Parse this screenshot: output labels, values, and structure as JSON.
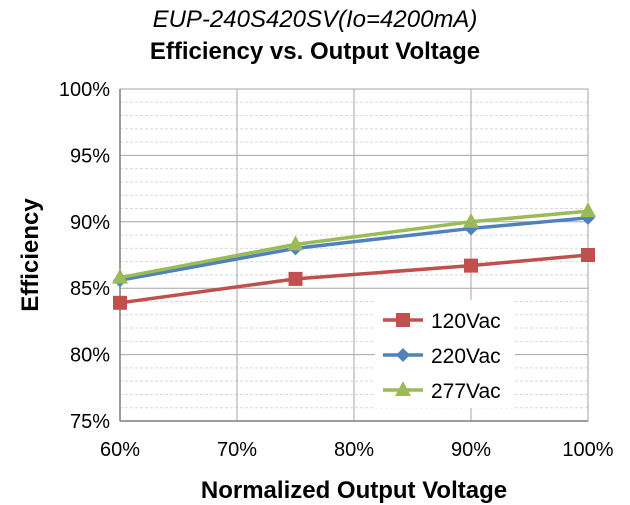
{
  "chart_data": {
    "type": "line",
    "title": "EUP-240S420SV(Io=4200mA)",
    "subtitle": "Efficiency vs. Output Voltage",
    "xlabel": "Normalized Output Voltage",
    "ylabel": "Efficiency",
    "x": [
      60,
      75,
      90,
      100
    ],
    "xlim": [
      60,
      100
    ],
    "ylim": [
      75,
      100
    ],
    "x_ticks": [
      "60%",
      "70%",
      "80%",
      "90%",
      "100%"
    ],
    "y_ticks": [
      "75%",
      "80%",
      "85%",
      "90%",
      "95%",
      "100%"
    ],
    "x_tick_values": [
      60,
      70,
      80,
      90,
      100
    ],
    "y_tick_values": [
      75,
      80,
      85,
      90,
      95,
      100
    ],
    "grid": true,
    "legend_position": "bottom-right",
    "series": [
      {
        "name": "120Vac",
        "values": [
          83.9,
          85.7,
          86.7,
          87.5
        ],
        "color": "#c0504d",
        "marker": "square"
      },
      {
        "name": "220Vac",
        "values": [
          85.6,
          88.0,
          89.5,
          90.3
        ],
        "color": "#4f81bd",
        "marker": "diamond"
      },
      {
        "name": "277Vac",
        "values": [
          85.8,
          88.3,
          90.0,
          90.8
        ],
        "color": "#9bbb59",
        "marker": "triangle"
      }
    ]
  }
}
